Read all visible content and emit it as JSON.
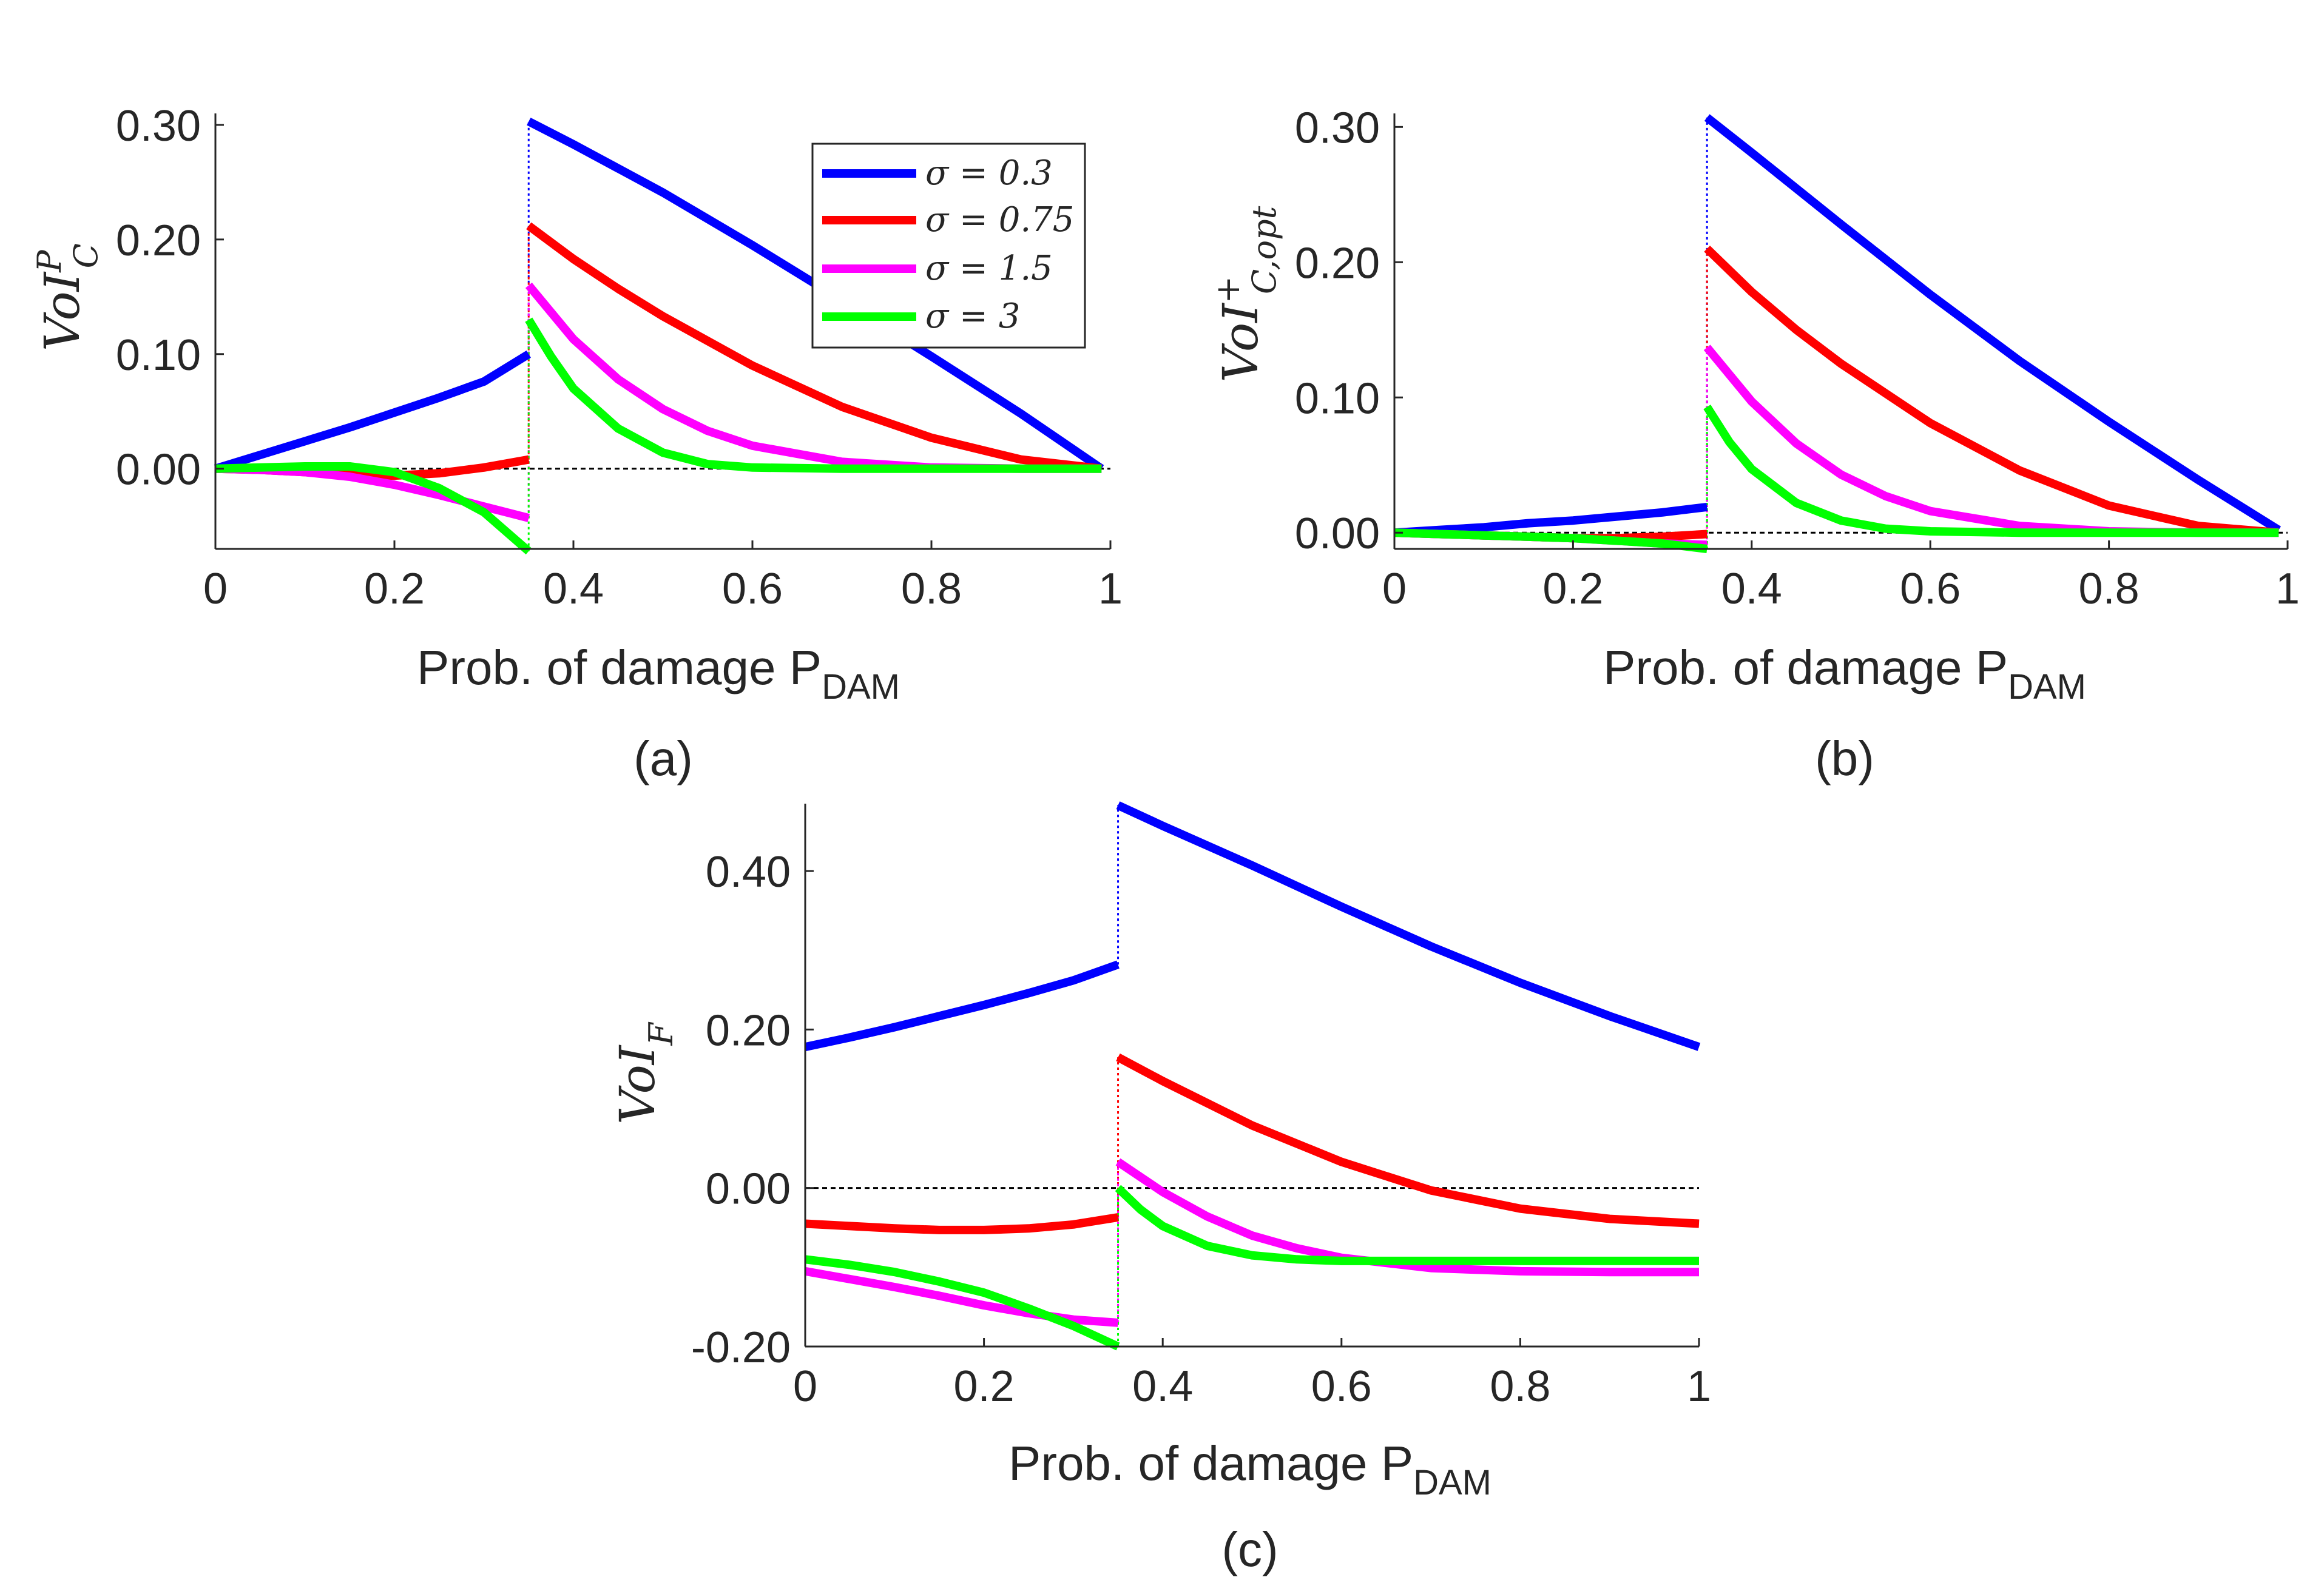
{
  "chart_data": [
    {
      "id": "a",
      "type": "line",
      "caption": "(a)",
      "xlabel": "Prob. of damage P",
      "xlabel_sub": "DAM",
      "ylabel_base": "VoI",
      "ylabel_sup": "P",
      "ylabel_sub": "C",
      "xlim": [
        0,
        1
      ],
      "ylim": [
        -0.07,
        0.31
      ],
      "xticks": [
        0,
        0.2,
        0.4,
        0.6,
        0.8,
        1
      ],
      "xtick_labels": [
        "0",
        "0.2",
        "0.4",
        "0.6",
        "0.8",
        "1"
      ],
      "yticks": [
        0,
        0.1,
        0.2,
        0.3
      ],
      "ytick_labels": [
        "0.00",
        "0.10",
        "0.20",
        "0.30"
      ],
      "threshold_x": 0.35,
      "zero_line": true,
      "legend": {
        "placement": "top-right",
        "entries": [
          "σ = 0.3",
          "σ = 0.75",
          "σ = 1.5",
          "σ = 3"
        ]
      },
      "series": [
        {
          "name": "σ = 0.3",
          "color": "#0000ff",
          "x": [
            0,
            0.05,
            0.1,
            0.15,
            0.2,
            0.25,
            0.3,
            0.35,
            0.35,
            0.4,
            0.5,
            0.6,
            0.7,
            0.8,
            0.9,
            0.99
          ],
          "y": [
            0,
            0.012,
            0.024,
            0.036,
            0.049,
            0.062,
            0.076,
            0.1,
            0.303,
            0.283,
            0.241,
            0.195,
            0.147,
            0.098,
            0.048,
            0
          ]
        },
        {
          "name": "σ = 0.75",
          "color": "#ff0000",
          "x": [
            0,
            0.05,
            0.1,
            0.15,
            0.2,
            0.25,
            0.3,
            0.35,
            0.35,
            0.4,
            0.45,
            0.5,
            0.6,
            0.7,
            0.8,
            0.9,
            0.99
          ],
          "y": [
            0,
            -0.001,
            -0.003,
            -0.005,
            -0.006,
            -0.004,
            0.001,
            0.008,
            0.212,
            0.183,
            0.157,
            0.133,
            0.09,
            0.054,
            0.027,
            0.008,
            0
          ]
        },
        {
          "name": "σ = 1.5",
          "color": "#ff00ff",
          "x": [
            0,
            0.05,
            0.1,
            0.15,
            0.2,
            0.25,
            0.3,
            0.35,
            0.35,
            0.4,
            0.45,
            0.5,
            0.55,
            0.6,
            0.7,
            0.8,
            0.9,
            0.99
          ],
          "y": [
            0,
            -0.001,
            -0.003,
            -0.007,
            -0.014,
            -0.023,
            -0.033,
            -0.043,
            0.16,
            0.113,
            0.078,
            0.052,
            0.033,
            0.02,
            0.006,
            0.001,
            0,
            0
          ]
        },
        {
          "name": "σ = 3",
          "color": "#00ff00",
          "x": [
            0,
            0.05,
            0.1,
            0.15,
            0.2,
            0.25,
            0.3,
            0.35,
            0.35,
            0.375,
            0.4,
            0.45,
            0.5,
            0.55,
            0.6,
            0.7,
            0.8,
            0.9,
            0.99
          ],
          "y": [
            0,
            0.001,
            0.002,
            0.002,
            -0.003,
            -0.017,
            -0.038,
            -0.072,
            0.13,
            0.098,
            0.07,
            0.035,
            0.014,
            0.004,
            0.001,
            0,
            0,
            0,
            0
          ]
        }
      ]
    },
    {
      "id": "b",
      "type": "line",
      "caption": "(b)",
      "xlabel": "Prob. of damage P",
      "xlabel_sub": "DAM",
      "ylabel_base": "VoI",
      "ylabel_sup": "+",
      "ylabel_sub": "C,opt",
      "xlim": [
        0,
        1
      ],
      "ylim": [
        -0.012,
        0.31
      ],
      "xticks": [
        0,
        0.2,
        0.4,
        0.6,
        0.8,
        1
      ],
      "xtick_labels": [
        "0",
        "0.2",
        "0.4",
        "0.6",
        "0.8",
        "1"
      ],
      "yticks": [
        0,
        0.1,
        0.2,
        0.3
      ],
      "ytick_labels": [
        "0.00",
        "0.10",
        "0.20",
        "0.30"
      ],
      "threshold_x": 0.35,
      "zero_line": true,
      "series": [
        {
          "name": "σ = 0.3",
          "color": "#0000ff",
          "x": [
            0,
            0.05,
            0.1,
            0.15,
            0.2,
            0.25,
            0.3,
            0.35,
            0.35,
            0.4,
            0.5,
            0.6,
            0.7,
            0.8,
            0.9,
            0.99
          ],
          "y": [
            0,
            0.002,
            0.004,
            0.007,
            0.009,
            0.012,
            0.015,
            0.019,
            0.307,
            0.281,
            0.228,
            0.176,
            0.127,
            0.082,
            0.039,
            0.002
          ]
        },
        {
          "name": "σ = 0.75",
          "color": "#ff0000",
          "x": [
            0,
            0.05,
            0.1,
            0.15,
            0.2,
            0.25,
            0.3,
            0.35,
            0.35,
            0.4,
            0.45,
            0.5,
            0.6,
            0.7,
            0.8,
            0.9,
            0.99
          ],
          "y": [
            0,
            -0.001,
            -0.002,
            -0.003,
            -0.004,
            -0.004,
            -0.003,
            -0.001,
            0.21,
            0.178,
            0.15,
            0.125,
            0.081,
            0.046,
            0.02,
            0.005,
            0
          ]
        },
        {
          "name": "σ = 1.5",
          "color": "#ff00ff",
          "x": [
            0,
            0.05,
            0.1,
            0.15,
            0.2,
            0.25,
            0.3,
            0.35,
            0.35,
            0.4,
            0.45,
            0.5,
            0.55,
            0.6,
            0.7,
            0.8,
            0.9,
            0.99
          ],
          "y": [
            0,
            -0.001,
            -0.002,
            -0.003,
            -0.004,
            -0.006,
            -0.008,
            -0.009,
            0.137,
            0.097,
            0.066,
            0.043,
            0.027,
            0.016,
            0.005,
            0.001,
            0,
            0
          ]
        },
        {
          "name": "σ = 3",
          "color": "#00ff00",
          "x": [
            0,
            0.05,
            0.1,
            0.15,
            0.2,
            0.25,
            0.3,
            0.35,
            0.35,
            0.375,
            0.4,
            0.45,
            0.5,
            0.55,
            0.6,
            0.7,
            0.8,
            0.9,
            0.99
          ],
          "y": [
            0,
            -0.001,
            -0.002,
            -0.003,
            -0.004,
            -0.006,
            -0.008,
            -0.012,
            0.093,
            0.067,
            0.047,
            0.022,
            0.009,
            0.003,
            0.001,
            0,
            0,
            0,
            0
          ]
        }
      ]
    },
    {
      "id": "c",
      "type": "line",
      "caption": "(c)",
      "xlabel": "Prob. of damage P",
      "xlabel_sub": "DAM",
      "ylabel_base": "VoI",
      "ylabel_sup": "",
      "ylabel_sub": "F",
      "xlim": [
        0,
        1
      ],
      "ylim": [
        -0.2,
        0.485
      ],
      "xticks": [
        0,
        0.2,
        0.4,
        0.6,
        0.8,
        1
      ],
      "xtick_labels": [
        "0",
        "0.2",
        "0.4",
        "0.6",
        "0.8",
        "1"
      ],
      "yticks": [
        -0.2,
        0,
        0.2,
        0.4
      ],
      "ytick_labels": [
        "-0.20",
        "0.00",
        "0.20",
        "0.40"
      ],
      "threshold_x": 0.35,
      "zero_line": true,
      "series": [
        {
          "name": "σ = 0.3",
          "color": "#0000ff",
          "x": [
            0,
            0.05,
            0.1,
            0.15,
            0.2,
            0.25,
            0.3,
            0.35,
            0.35,
            0.4,
            0.5,
            0.6,
            0.7,
            0.8,
            0.9,
            1
          ],
          "y": [
            0.178,
            0.19,
            0.203,
            0.217,
            0.231,
            0.246,
            0.262,
            0.282,
            0.483,
            0.457,
            0.407,
            0.355,
            0.305,
            0.259,
            0.217,
            0.178
          ]
        },
        {
          "name": "σ = 0.75",
          "color": "#ff0000",
          "x": [
            0,
            0.05,
            0.1,
            0.15,
            0.2,
            0.25,
            0.3,
            0.35,
            0.35,
            0.4,
            0.5,
            0.6,
            0.7,
            0.8,
            0.9,
            1
          ],
          "y": [
            -0.045,
            -0.048,
            -0.051,
            -0.053,
            -0.053,
            -0.051,
            -0.046,
            -0.037,
            0.165,
            0.135,
            0.079,
            0.033,
            -0.003,
            -0.026,
            -0.039,
            -0.045
          ]
        },
        {
          "name": "σ = 1.5",
          "color": "#ff00ff",
          "x": [
            0,
            0.05,
            0.1,
            0.15,
            0.2,
            0.25,
            0.3,
            0.35,
            0.35,
            0.4,
            0.45,
            0.5,
            0.55,
            0.6,
            0.7,
            0.8,
            0.9,
            1
          ],
          "y": [
            -0.105,
            -0.115,
            -0.125,
            -0.136,
            -0.148,
            -0.158,
            -0.166,
            -0.17,
            0.033,
            -0.005,
            -0.036,
            -0.06,
            -0.076,
            -0.088,
            -0.101,
            -0.105,
            -0.106,
            -0.106
          ]
        },
        {
          "name": "σ = 3",
          "color": "#00ff00",
          "x": [
            0,
            0.05,
            0.1,
            0.15,
            0.2,
            0.25,
            0.3,
            0.35,
            0.35,
            0.375,
            0.4,
            0.45,
            0.5,
            0.55,
            0.6,
            0.7,
            0.8,
            0.9,
            1
          ],
          "y": [
            -0.09,
            -0.097,
            -0.106,
            -0.118,
            -0.132,
            -0.152,
            -0.174,
            -0.2,
            0,
            -0.027,
            -0.048,
            -0.073,
            -0.085,
            -0.09,
            -0.092,
            -0.092,
            -0.092,
            -0.092,
            -0.092
          ]
        }
      ]
    }
  ]
}
